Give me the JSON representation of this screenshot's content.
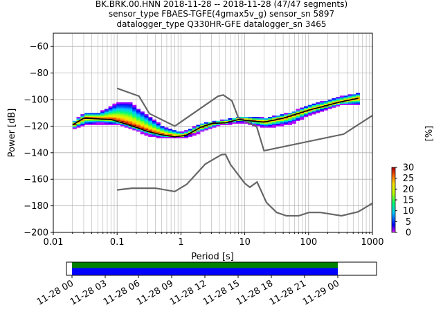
{
  "chart_data": {
    "type": "heatmap",
    "title_lines": [
      "BK.BRK.00.HNN   2018-11-28 -- 2018-11-28  (47/47 segments)",
      "sensor_type FBAES-TGFE(4gmax5v_g) sensor_sn 5897",
      "datalogger_type Q330HR-GFE datalogger_sn 3465"
    ],
    "xlabel": "Period [s]",
    "ylabel": "Power [dB]",
    "xscale": "log",
    "xlim": [
      0.01,
      1000
    ],
    "ylim": [
      -200,
      -50
    ],
    "x_ticks": [
      {
        "v": 0.01,
        "label": "0.01"
      },
      {
        "v": 0.1,
        "label": "0.1"
      },
      {
        "v": 1,
        "label": "1"
      },
      {
        "v": 10,
        "label": "10"
      },
      {
        "v": 100,
        "label": "100"
      },
      {
        "v": 1000,
        "label": "1000"
      }
    ],
    "y_ticks": [
      {
        "v": -60,
        "label": "−60"
      },
      {
        "v": -80,
        "label": "−80"
      },
      {
        "v": -100,
        "label": "−100"
      },
      {
        "v": -120,
        "label": "−120"
      },
      {
        "v": -140,
        "label": "−140"
      },
      {
        "v": -160,
        "label": "−160"
      },
      {
        "v": -180,
        "label": "−180"
      },
      {
        "v": -200,
        "label": "−200"
      }
    ],
    "grid": true,
    "noise_models": {
      "color": "#666666",
      "high": [
        [
          0.1,
          -91.5
        ],
        [
          0.22,
          -97.4
        ],
        [
          0.32,
          -110.5
        ],
        [
          0.8,
          -120
        ],
        [
          3.8,
          -97.5
        ],
        [
          4.6,
          -96.5
        ],
        [
          6.3,
          -101
        ],
        [
          7.9,
          -113.5
        ],
        [
          15.4,
          -120.5
        ],
        [
          20,
          -138.5
        ],
        [
          354.8,
          -126
        ],
        [
          1000,
          -112
        ]
      ],
      "low": [
        [
          0.1,
          -168
        ],
        [
          0.17,
          -166.7
        ],
        [
          0.4,
          -166.7
        ],
        [
          0.8,
          -169.2
        ],
        [
          1.24,
          -163.7
        ],
        [
          2.4,
          -148.6
        ],
        [
          4.3,
          -141.5
        ],
        [
          5,
          -141.2
        ],
        [
          6,
          -149
        ],
        [
          10,
          -163
        ],
        [
          12,
          -166
        ],
        [
          15.6,
          -162.1
        ],
        [
          21.9,
          -177.5
        ],
        [
          31.6,
          -185
        ],
        [
          45,
          -187.5
        ],
        [
          70,
          -187.5
        ],
        [
          101,
          -185
        ],
        [
          154,
          -185
        ],
        [
          328,
          -187.5
        ],
        [
          600,
          -184.5
        ],
        [
          1000,
          -178
        ]
      ]
    },
    "mode_line": {
      "color": "#000000",
      "points": [
        [
          0.02,
          -119
        ],
        [
          0.03,
          -114
        ],
        [
          0.05,
          -114.5
        ],
        [
          0.08,
          -115
        ],
        [
          0.12,
          -117.5
        ],
        [
          0.2,
          -121
        ],
        [
          0.3,
          -124
        ],
        [
          0.5,
          -126.5
        ],
        [
          0.8,
          -128
        ],
        [
          1.2,
          -127
        ],
        [
          2,
          -121
        ],
        [
          3,
          -118
        ],
        [
          5,
          -117.5
        ],
        [
          8,
          -115
        ],
        [
          12,
          -116
        ],
        [
          20,
          -117
        ],
        [
          40,
          -114
        ],
        [
          100,
          -108
        ],
        [
          300,
          -102
        ],
        [
          600,
          -99
        ]
      ]
    },
    "spread": {
      "upper": [
        [
          0.02,
          -116
        ],
        [
          0.03,
          -110
        ],
        [
          0.05,
          -110
        ],
        [
          0.1,
          -102
        ],
        [
          0.15,
          -102
        ],
        [
          0.2,
          -107
        ],
        [
          0.3,
          -113
        ],
        [
          0.5,
          -121
        ],
        [
          1,
          -125
        ],
        [
          2,
          -118
        ],
        [
          4,
          -116
        ],
        [
          8,
          -113
        ],
        [
          20,
          -114
        ],
        [
          50,
          -110
        ],
        [
          100,
          -104
        ],
        [
          300,
          -98
        ],
        [
          600,
          -95
        ]
      ],
      "lower": [
        [
          0.02,
          -122
        ],
        [
          0.03,
          -119
        ],
        [
          0.05,
          -118
        ],
        [
          0.1,
          -119
        ],
        [
          0.2,
          -124
        ],
        [
          0.3,
          -127
        ],
        [
          0.5,
          -129
        ],
        [
          1,
          -129
        ],
        [
          2,
          -124
        ],
        [
          4,
          -119
        ],
        [
          8,
          -117
        ],
        [
          20,
          -121
        ],
        [
          50,
          -118
        ],
        [
          100,
          -111
        ],
        [
          300,
          -104
        ],
        [
          600,
          -104
        ]
      ]
    },
    "colorbar": {
      "label": "[%]",
      "ticks": [
        {
          "v": 0,
          "label": "0"
        },
        {
          "v": 5,
          "label": "5"
        },
        {
          "v": 10,
          "label": "10"
        },
        {
          "v": 15,
          "label": "15"
        },
        {
          "v": 20,
          "label": "20"
        },
        {
          "v": 25,
          "label": "25"
        },
        {
          "v": 30,
          "label": "30"
        }
      ],
      "range": [
        0,
        30
      ]
    },
    "coverage": {
      "time_ticks": [
        "11-28 00",
        "11-28 03",
        "11-28 06",
        "11-28 09",
        "11-28 12",
        "11-28 15",
        "11-28 18",
        "11-28 21",
        "11-29 00"
      ],
      "range_hours": [
        -0.5,
        27.5
      ],
      "data_hours": [
        0,
        24
      ],
      "colors": {
        "data": "#0000ff",
        "processed": "#008000"
      }
    }
  }
}
